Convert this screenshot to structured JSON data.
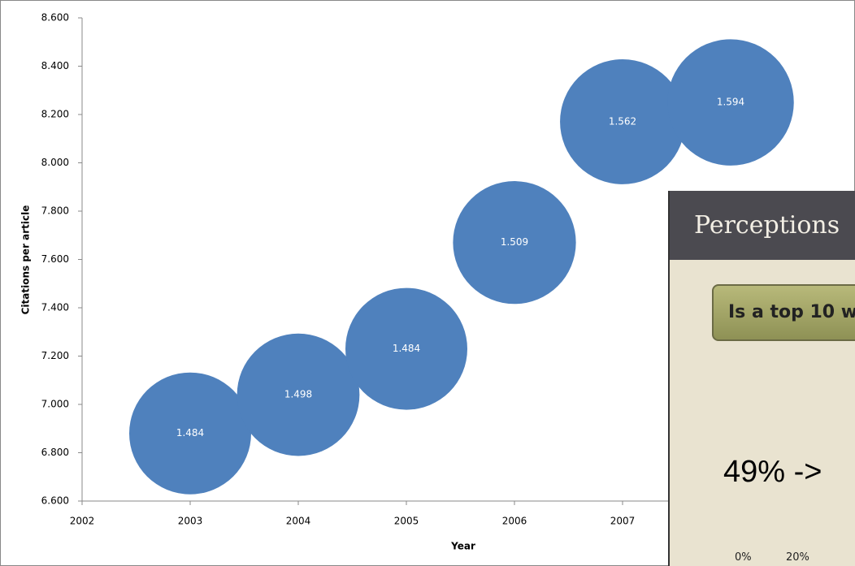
{
  "chart_data": {
    "type": "bubble",
    "xlabel": "Year",
    "ylabel": "Citations per article",
    "x": [
      2003,
      2004,
      2005,
      2006,
      2007,
      2008
    ],
    "y": [
      6.88,
      7.04,
      7.23,
      7.67,
      8.17,
      8.25
    ],
    "sizes": [
      1.484,
      1.498,
      1.484,
      1.509,
      1.562,
      1.594
    ],
    "color": "#4f81bd",
    "xlim": [
      2002,
      2009
    ],
    "xticks": [
      2002,
      2003,
      2004,
      2005,
      2006,
      2007
    ],
    "ylim": [
      6.6,
      8.6
    ],
    "yticks": [
      {
        "value": 6.6,
        "label": "6.600"
      },
      {
        "value": 6.8,
        "label": "6.800"
      },
      {
        "value": 7.0,
        "label": "7.000"
      },
      {
        "value": 7.2,
        "label": "7.200"
      },
      {
        "value": 7.4,
        "label": "7.400"
      },
      {
        "value": 7.6,
        "label": "7.600"
      },
      {
        "value": 7.8,
        "label": "7.800"
      },
      {
        "value": 8.0,
        "label": "8.000"
      },
      {
        "value": 8.2,
        "label": "8.200"
      },
      {
        "value": 8.4,
        "label": "8.400"
      },
      {
        "value": 8.6,
        "label": "8.600"
      }
    ]
  },
  "overlay": {
    "title": "Perceptions",
    "button": "Is a top 10 w",
    "text": "49% ->",
    "axis_labels": [
      "0%",
      "20%"
    ]
  }
}
